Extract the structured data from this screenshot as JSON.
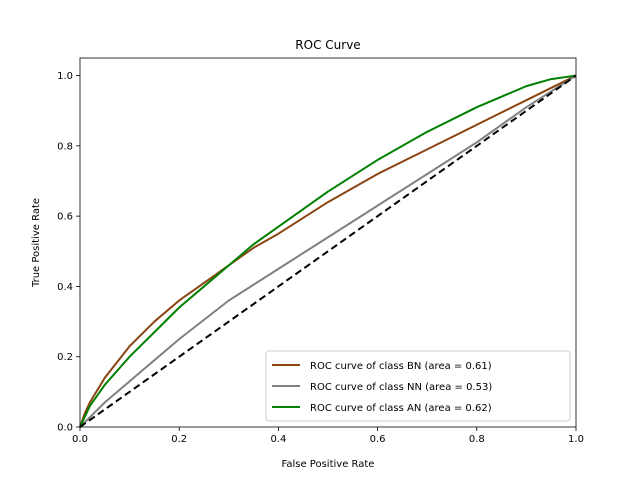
{
  "chart_data": {
    "type": "line",
    "title": "ROC Curve",
    "xlabel": "False Positive Rate",
    "ylabel": "True Positive Rate",
    "xlim": [
      0.0,
      1.0
    ],
    "ylim": [
      0.0,
      1.05
    ],
    "x_ticks": [
      "0.0",
      "0.2",
      "0.4",
      "0.6",
      "0.8",
      "1.0"
    ],
    "y_ticks": [
      "0.0",
      "0.2",
      "0.4",
      "0.6",
      "0.8",
      "1.0"
    ],
    "grid": false,
    "legend_position": "lower-right",
    "series": [
      {
        "name": "ROC curve of class BN (area = 0.61)",
        "color": "#8B4513",
        "x": [
          0.0,
          0.01,
          0.02,
          0.05,
          0.1,
          0.15,
          0.2,
          0.25,
          0.3,
          0.35,
          0.4,
          0.5,
          0.6,
          0.7,
          0.8,
          0.9,
          1.0
        ],
        "y": [
          0.0,
          0.04,
          0.07,
          0.14,
          0.23,
          0.3,
          0.36,
          0.41,
          0.46,
          0.51,
          0.55,
          0.64,
          0.72,
          0.79,
          0.86,
          0.93,
          1.0
        ]
      },
      {
        "name": "ROC curve of class NN (area = 0.53)",
        "color": "#808080",
        "x": [
          0.0,
          0.05,
          0.1,
          0.2,
          0.3,
          0.4,
          0.5,
          0.6,
          0.7,
          0.8,
          0.9,
          1.0
        ],
        "y": [
          0.0,
          0.07,
          0.13,
          0.25,
          0.36,
          0.45,
          0.54,
          0.63,
          0.72,
          0.81,
          0.91,
          1.0
        ]
      },
      {
        "name": "ROC curve of class AN (area = 0.62)",
        "color": "#008000",
        "x": [
          0.0,
          0.01,
          0.02,
          0.05,
          0.1,
          0.15,
          0.2,
          0.25,
          0.3,
          0.35,
          0.4,
          0.5,
          0.6,
          0.7,
          0.8,
          0.9,
          0.95,
          1.0
        ],
        "y": [
          0.0,
          0.03,
          0.06,
          0.12,
          0.2,
          0.27,
          0.34,
          0.4,
          0.46,
          0.52,
          0.57,
          0.67,
          0.76,
          0.84,
          0.91,
          0.97,
          0.99,
          1.0
        ]
      },
      {
        "name": "",
        "color": "#000000",
        "dashed": true,
        "x": [
          0.0,
          1.0
        ],
        "y": [
          0.0,
          1.0
        ]
      }
    ]
  }
}
